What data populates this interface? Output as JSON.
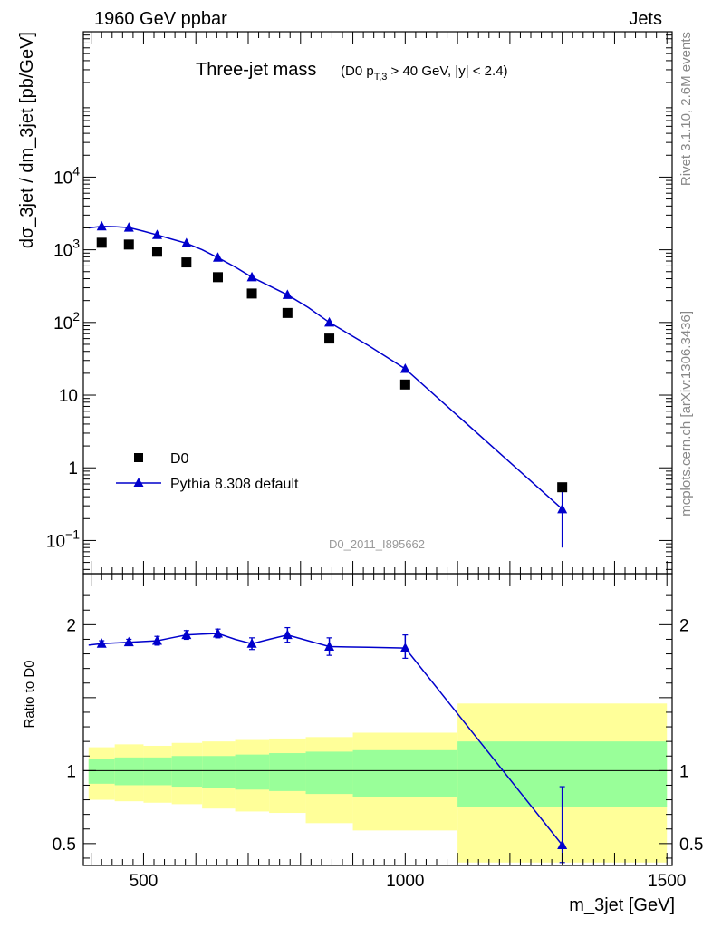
{
  "header": {
    "left": "1960 GeV ppbar",
    "right": "Jets"
  },
  "side_labels": {
    "rivet": "Rivet 3.1.10,  2.6M events",
    "mcplots": "mcplots.cern.ch [arXiv:1306.3436]"
  },
  "chart_data": [
    {
      "type": "scatter",
      "title": "Three-jet mass",
      "subtitle_parts": {
        "pre": "(D0 p",
        "sub": "T,3",
        "post": " > 40 GeV, |y| < 2.4)"
      },
      "watermark": "D0_2011_I895662",
      "ylabel": "dσ_3jet / dm_3jet [pb/GeV]",
      "yscale": "log",
      "ylim": [
        0.035,
        1000000
      ],
      "xlim": [
        385,
        1510
      ],
      "y_ticks": [
        {
          "value": 0.1,
          "label": "10",
          "exp": "−1"
        },
        {
          "value": 1,
          "label": "1",
          "exp": ""
        },
        {
          "value": 10,
          "label": "10",
          "exp": ""
        },
        {
          "value": 100,
          "label": "10",
          "exp": "2"
        },
        {
          "value": 1000,
          "label": "10",
          "exp": "3"
        },
        {
          "value": 10000,
          "label": "10",
          "exp": "4"
        }
      ],
      "legend": {
        "placement": "bottom-left"
      },
      "series": [
        {
          "name": "D0",
          "color": "#000000",
          "marker": "square",
          "x": [
            420,
            472,
            526,
            582,
            642,
            707,
            775,
            855,
            1000,
            1300
          ],
          "y": [
            1250,
            1180,
            940,
            670,
            420,
            250,
            135,
            60,
            14,
            0.54
          ]
        },
        {
          "name": "Pythia 8.308 default",
          "color": "#0000cc",
          "marker": "triangle",
          "x": [
            420,
            472,
            526,
            582,
            642,
            707,
            775,
            855,
            1000,
            1300
          ],
          "y": [
            2100,
            2020,
            1600,
            1230,
            780,
            420,
            240,
            100,
            23,
            0.27
          ],
          "err_low": [
            0,
            0,
            0,
            0,
            0,
            0,
            0,
            0,
            0,
            0.19
          ],
          "err_high": [
            0,
            0,
            0,
            0,
            0,
            0,
            0,
            0,
            0,
            0.27
          ]
        }
      ],
      "curve_x": [
        395,
        420,
        445,
        472,
        500,
        526,
        554,
        582,
        612,
        642,
        675,
        707,
        740,
        775,
        815,
        855,
        930,
        1000,
        1300
      ],
      "curve_y": [
        2000,
        2100,
        2080,
        2020,
        1800,
        1600,
        1400,
        1230,
        1000,
        780,
        580,
        420,
        320,
        240,
        160,
        100,
        48,
        23,
        0.27
      ]
    },
    {
      "type": "scatter",
      "ylabel": "Ratio to D0",
      "xlabel": "m_3jet [GeV]",
      "ylim": [
        0.35,
        2.35
      ],
      "xlim": [
        385,
        1510
      ],
      "y_ticks": [
        {
          "value": 0.5,
          "label": "0.5"
        },
        {
          "value": 1,
          "label": "1"
        },
        {
          "value": 1.5,
          "label": ""
        },
        {
          "value": 2,
          "label": "2"
        }
      ],
      "x_ticks": [
        {
          "value": 500,
          "label": "500"
        },
        {
          "value": 1000,
          "label": "1000"
        },
        {
          "value": 1500,
          "label": "1500"
        }
      ],
      "bands": [
        {
          "x0": 395,
          "x1": 445,
          "green": [
            0.91,
            1.08
          ],
          "yellow": [
            0.8,
            1.16
          ]
        },
        {
          "x0": 445,
          "x1": 500,
          "green": [
            0.9,
            1.09
          ],
          "yellow": [
            0.79,
            1.18
          ]
        },
        {
          "x0": 500,
          "x1": 554,
          "green": [
            0.9,
            1.09
          ],
          "yellow": [
            0.78,
            1.17
          ]
        },
        {
          "x0": 554,
          "x1": 612,
          "green": [
            0.89,
            1.1
          ],
          "yellow": [
            0.77,
            1.19
          ]
        },
        {
          "x0": 612,
          "x1": 675,
          "green": [
            0.88,
            1.1
          ],
          "yellow": [
            0.74,
            1.2
          ]
        },
        {
          "x0": 675,
          "x1": 740,
          "green": [
            0.87,
            1.11
          ],
          "yellow": [
            0.72,
            1.21
          ]
        },
        {
          "x0": 740,
          "x1": 810,
          "green": [
            0.86,
            1.12
          ],
          "yellow": [
            0.71,
            1.22
          ]
        },
        {
          "x0": 810,
          "x1": 900,
          "green": [
            0.84,
            1.13
          ],
          "yellow": [
            0.64,
            1.23
          ]
        },
        {
          "x0": 900,
          "x1": 1100,
          "green": [
            0.82,
            1.14
          ],
          "yellow": [
            0.59,
            1.26
          ]
        },
        {
          "x0": 1100,
          "x1": 1500,
          "green": [
            0.75,
            1.2
          ],
          "yellow": [
            0.37,
            1.46
          ]
        }
      ],
      "series": [
        {
          "name": "Pythia 8.308 default",
          "color": "#0000cc",
          "marker": "triangle",
          "x": [
            420,
            472,
            526,
            582,
            642,
            707,
            775,
            855,
            1000,
            1300
          ],
          "y": [
            1.87,
            1.88,
            1.89,
            1.93,
            1.94,
            1.87,
            1.93,
            1.85,
            1.84,
            0.49
          ],
          "err_low": [
            0.02,
            0.02,
            0.03,
            0.03,
            0.03,
            0.04,
            0.05,
            0.06,
            0.07,
            0.12
          ],
          "err_high": [
            0.02,
            0.02,
            0.03,
            0.03,
            0.03,
            0.04,
            0.05,
            0.06,
            0.09,
            0.4
          ]
        }
      ],
      "curve_x": [
        395,
        420,
        445,
        472,
        500,
        526,
        554,
        582,
        612,
        642,
        675,
        707,
        740,
        775,
        815,
        855,
        930,
        1000,
        1300
      ],
      "curve_y": [
        1.86,
        1.87,
        1.875,
        1.88,
        1.885,
        1.89,
        1.91,
        1.93,
        1.935,
        1.94,
        1.9,
        1.87,
        1.9,
        1.93,
        1.89,
        1.85,
        1.845,
        1.84,
        0.49
      ]
    }
  ]
}
